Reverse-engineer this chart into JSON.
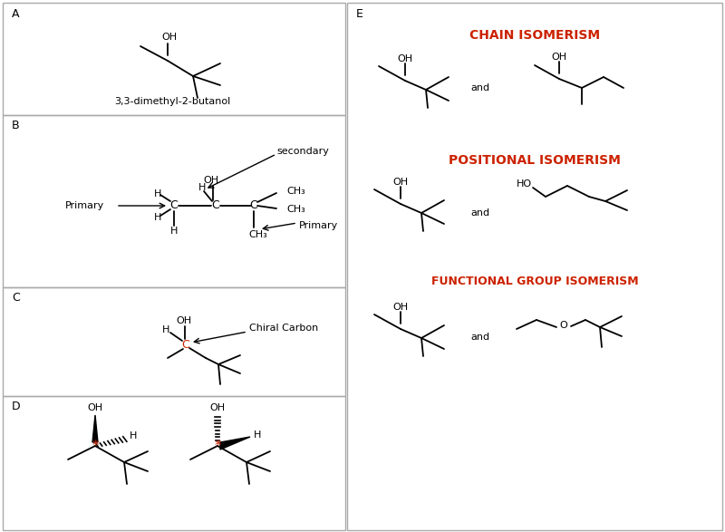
{
  "bg": "#ffffff",
  "lc": "#000000",
  "rc": "#cc2200",
  "panel_A_label": "A",
  "panel_B_label": "B",
  "panel_C_label": "C",
  "panel_D_label": "D",
  "panel_E_label": "E",
  "name_A": "3,3-dimethyl-2-butanol",
  "secondary_label": "secondary",
  "primary_label": "Primary",
  "chiral_label": "Chiral Carbon",
  "chain_label": "CHAIN ISOMERISM",
  "pos_label": "POSITIONAL ISOMERISM",
  "func_label": "FUNCTIONAL GROUP ISOMERISM",
  "and_label": "and"
}
